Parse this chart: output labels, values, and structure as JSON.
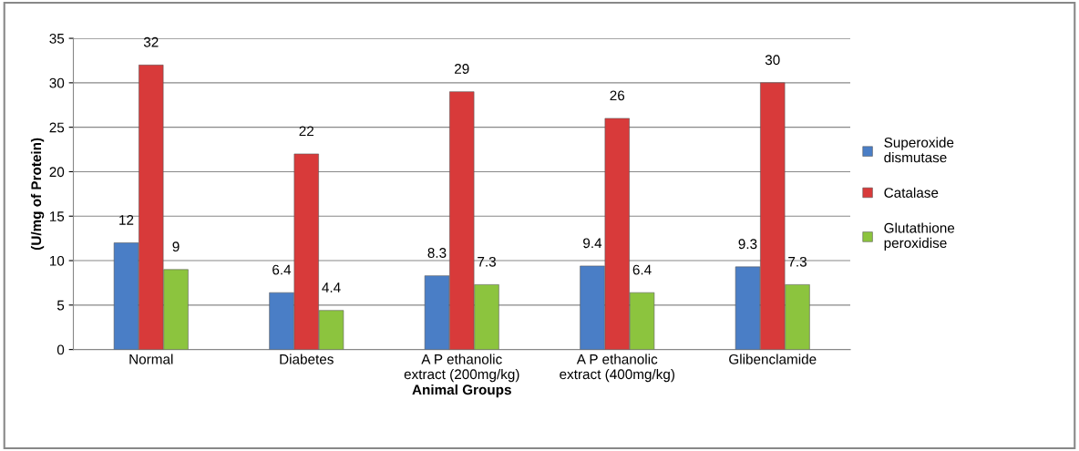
{
  "chart_data": {
    "type": "bar",
    "xlabel": "Animal Groups",
    "ylabel": "(U/mg of Protein)",
    "categories": [
      "Normal",
      "Diabetes",
      "A P ethanolic\nextract (200mg/kg)",
      "A P ethanolic\nextract (400mg/kg)",
      "Glibenclamide"
    ],
    "series": [
      {
        "name": "Superoxide\ndismutase",
        "color": "#4a7ec6",
        "values": [
          12,
          6.4,
          8.3,
          9.4,
          9.3
        ]
      },
      {
        "name": "Catalase",
        "color": "#d83a3a",
        "values": [
          32,
          22,
          29,
          26,
          30
        ]
      },
      {
        "name": "Glutathione\nperoxidise",
        "color": "#8cc43e",
        "values": [
          9,
          4.4,
          7.3,
          6.4,
          7.3
        ]
      }
    ],
    "ylim": [
      0,
      35
    ],
    "yticks": [
      0,
      5,
      10,
      15,
      20,
      25,
      30,
      35
    ],
    "grid": "y",
    "legend": "right",
    "data_labels": true
  }
}
